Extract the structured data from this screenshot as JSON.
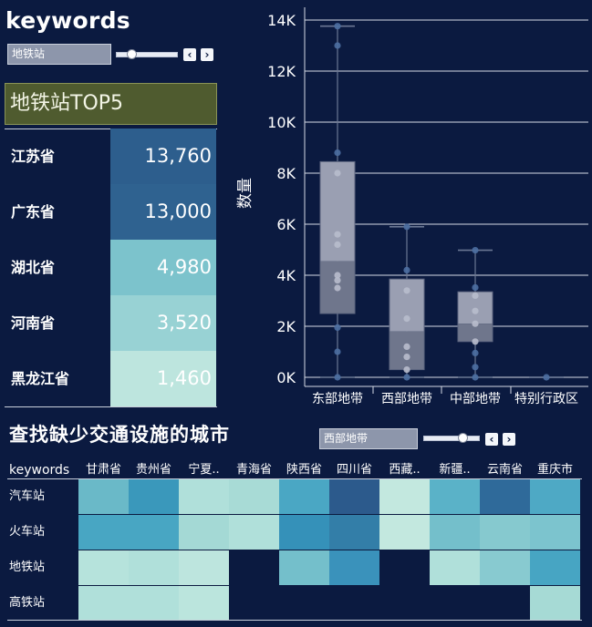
{
  "header": {
    "title": "keywords",
    "filter_value": "地铁站",
    "prev_icon": "chevron-left-icon",
    "next_icon": "chevron-right-icon"
  },
  "top5": {
    "title": "地铁站TOP5",
    "rows": [
      {
        "province": "江苏省",
        "value": "13,760",
        "color": "#2d5e8d"
      },
      {
        "province": "广东省",
        "value": "13,000",
        "color": "#2f6290"
      },
      {
        "province": "湖北省",
        "value": "4,980",
        "color": "#7cc3cc"
      },
      {
        "province": "河南省",
        "value": "3,520",
        "color": "#98d2d4"
      },
      {
        "province": "黑龙江省",
        "value": "1,460",
        "color": "#bde5de"
      }
    ]
  },
  "chart_data": {
    "type": "boxplot",
    "ylabel": "数量",
    "y_ticks": [
      "0K",
      "2K",
      "4K",
      "6K",
      "8K",
      "10K",
      "12K",
      "14K"
    ],
    "ylim": [
      0,
      14500
    ],
    "categories": [
      "东部地带",
      "西部地带",
      "中部地带",
      "特别行政区"
    ],
    "boxes": [
      {
        "category": "东部地带",
        "min": 0,
        "q1": 2500,
        "median": 4550,
        "q3": 8450,
        "max": 13760,
        "points": [
          0,
          1000,
          1950,
          3500,
          3800,
          4000,
          5200,
          5600,
          8000,
          8800,
          13000,
          13760
        ]
      },
      {
        "category": "西部地带",
        "min": 0,
        "q1": 300,
        "median": 1800,
        "q3": 3850,
        "max": 5900,
        "points": [
          0,
          300,
          800,
          1200,
          2300,
          3400,
          4200,
          5900
        ]
      },
      {
        "category": "中部地带",
        "min": 0,
        "q1": 1400,
        "median": 2100,
        "q3": 3350,
        "max": 4980,
        "points": [
          0,
          400,
          950,
          1400,
          2100,
          2600,
          3200,
          3520,
          4980
        ]
      },
      {
        "category": "特别行政区",
        "min": 0,
        "q1": 0,
        "median": 0,
        "q3": 0,
        "max": 0,
        "points": [
          0
        ]
      }
    ],
    "grid": true
  },
  "section2": {
    "title": "查找缺少交通设施的城市",
    "filter_value": "西部地带",
    "prev_icon": "chevron-left-icon",
    "next_icon": "chevron-right-icon"
  },
  "heatmap": {
    "row_header": "keywords",
    "columns": [
      "甘肃省",
      "贵州省",
      "宁夏..",
      "青海省",
      "陕西省",
      "四川省",
      "西藏..",
      "新疆..",
      "云南省",
      "重庆市"
    ],
    "rows": [
      {
        "label": "汽车站",
        "colors": [
          "#6ab9c8",
          "#3a98bb",
          "#b0e0da",
          "#a8dbd6",
          "#4aa7c4",
          "#2c5a8c",
          "#c3e8df",
          "#5ab2c8",
          "#2f6a9a",
          "#4ea9c5"
        ]
      },
      {
        "label": "火车站",
        "colors": [
          "#48a6c3",
          "#48a6c3",
          "#a4d9d5",
          "#b0e0da",
          "#3591b9",
          "#337ea8",
          "#c3e8df",
          "#74bfcb",
          "#86c9cf",
          "#7cc4ce"
        ]
      },
      {
        "label": "地铁站",
        "colors": [
          "#b6e3dc",
          "#b0e0da",
          "#bde5de",
          "",
          "#74bfcb",
          "#3a92bb",
          "",
          "#b0e0da",
          "#88cad0",
          "#47a5c3"
        ]
      },
      {
        "label": "高铁站",
        "colors": [
          "#b0e0da",
          "#b0e0da",
          "#bbe5dd",
          "",
          "",
          "",
          "",
          "",
          "",
          "#a6dad5"
        ]
      }
    ]
  }
}
